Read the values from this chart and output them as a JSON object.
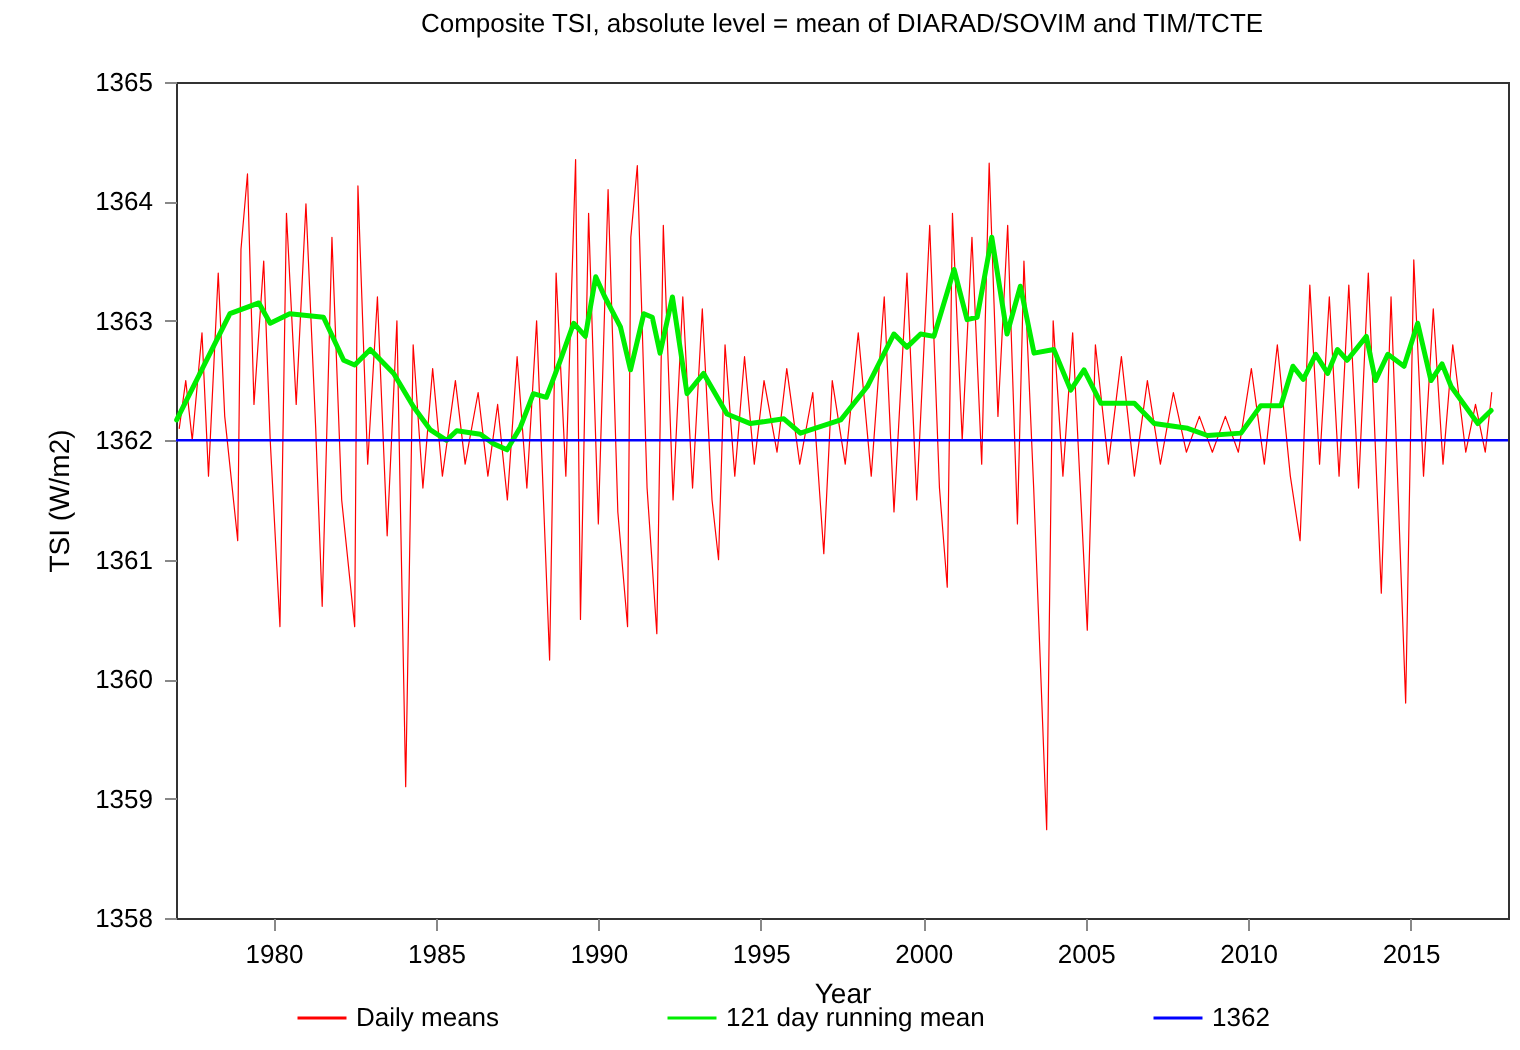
{
  "chart_data": {
    "type": "line",
    "title": "Composite TSI, absolute level = mean of DIARAD/SOVIM and TIM/TCTE",
    "xlabel": "Year",
    "ylabel": "TSI (W/m2)",
    "xlim": [
      1977,
      2018
    ],
    "xticks": [
      1980,
      1985,
      1990,
      1995,
      2000,
      2005,
      2010,
      2015
    ],
    "ylim": [
      1358,
      1365
    ],
    "yticks": [
      1358,
      1359,
      1360,
      1361,
      1362,
      1363,
      1364,
      1365
    ],
    "grid": false,
    "legend": "bottom",
    "ref_lines": [
      {
        "axis": "y",
        "value": 1362,
        "label": "1362",
        "color": "#0000ff"
      }
    ],
    "series": [
      {
        "name": "Daily means",
        "color": "#ff0000",
        "x": [
          1977.1,
          1977.3,
          1977.5,
          1977.8,
          1978.0,
          1978.3,
          1978.5,
          1978.9,
          1979.0,
          1979.2,
          1979.4,
          1979.7,
          1979.9,
          1980.2,
          1980.4,
          1980.7,
          1981.0,
          1981.3,
          1981.5,
          1981.8,
          1982.1,
          1982.5,
          1982.6,
          1982.9,
          1983.2,
          1983.5,
          1983.8,
          1984.07,
          1984.3,
          1984.6,
          1984.9,
          1985.2,
          1985.6,
          1985.9,
          1986.3,
          1986.6,
          1986.9,
          1987.2,
          1987.5,
          1987.8,
          1988.1,
          1988.5,
          1988.7,
          1989.0,
          1989.3,
          1989.45,
          1989.7,
          1990.0,
          1990.3,
          1990.6,
          1990.9,
          1991.0,
          1991.2,
          1991.5,
          1991.8,
          1992.0,
          1992.3,
          1992.6,
          1992.9,
          1993.2,
          1993.5,
          1993.7,
          1993.9,
          1994.2,
          1994.5,
          1994.8,
          1995.1,
          1995.5,
          1995.8,
          1996.2,
          1996.6,
          1996.94,
          1997.2,
          1997.6,
          1998.0,
          1998.4,
          1998.8,
          1999.1,
          1999.5,
          1999.8,
          2000.2,
          2000.5,
          2000.74,
          2000.9,
          2001.2,
          2001.5,
          2001.8,
          2002.03,
          2002.3,
          2002.6,
          2002.9,
          2003.1,
          2003.4,
          2003.8,
          2004.0,
          2004.3,
          2004.6,
          2005.05,
          2005.3,
          2005.7,
          2006.1,
          2006.5,
          2006.9,
          2007.3,
          2007.7,
          2008.1,
          2008.5,
          2008.9,
          2009.3,
          2009.7,
          2010.1,
          2010.5,
          2010.9,
          2011.3,
          2011.6,
          2011.9,
          2012.2,
          2012.5,
          2012.8,
          2013.1,
          2013.4,
          2013.7,
          2014.1,
          2014.4,
          2014.85,
          2015.1,
          2015.4,
          2015.7,
          2016.0,
          2016.3,
          2016.7,
          2017.0,
          2017.3,
          2017.5
        ],
        "values": [
          1362.1,
          1362.5,
          1362.0,
          1362.9,
          1361.7,
          1363.4,
          1362.2,
          1361.16,
          1363.6,
          1364.23,
          1362.3,
          1363.5,
          1362.0,
          1360.44,
          1363.9,
          1362.3,
          1363.98,
          1362.1,
          1360.61,
          1363.7,
          1361.5,
          1360.44,
          1364.13,
          1361.8,
          1363.2,
          1361.2,
          1363.0,
          1359.1,
          1362.8,
          1361.6,
          1362.6,
          1361.7,
          1362.5,
          1361.8,
          1362.4,
          1361.7,
          1362.3,
          1361.5,
          1362.7,
          1361.6,
          1363.0,
          1360.16,
          1363.4,
          1361.7,
          1364.35,
          1360.5,
          1363.9,
          1361.3,
          1364.1,
          1361.4,
          1360.44,
          1363.7,
          1364.3,
          1361.6,
          1360.38,
          1363.8,
          1361.5,
          1363.2,
          1361.6,
          1363.1,
          1361.5,
          1361.0,
          1362.8,
          1361.7,
          1362.7,
          1361.8,
          1362.5,
          1361.9,
          1362.6,
          1361.8,
          1362.4,
          1361.05,
          1362.5,
          1361.8,
          1362.9,
          1361.7,
          1363.2,
          1361.4,
          1363.4,
          1361.5,
          1363.8,
          1361.6,
          1360.77,
          1363.9,
          1362.0,
          1363.7,
          1361.8,
          1364.32,
          1362.2,
          1363.8,
          1361.3,
          1363.5,
          1361.6,
          1358.74,
          1363.0,
          1361.7,
          1362.9,
          1360.41,
          1362.8,
          1361.8,
          1362.7,
          1361.7,
          1362.5,
          1361.8,
          1362.4,
          1361.9,
          1362.2,
          1361.9,
          1362.2,
          1361.9,
          1362.6,
          1361.8,
          1362.8,
          1361.7,
          1361.16,
          1363.3,
          1361.8,
          1363.2,
          1361.7,
          1363.3,
          1361.6,
          1363.4,
          1360.72,
          1363.2,
          1359.8,
          1363.51,
          1361.7,
          1363.1,
          1361.8,
          1362.8,
          1361.9,
          1362.3,
          1361.9,
          1362.4
        ]
      },
      {
        "name": "121 day running mean",
        "color": "#00ee00",
        "x": [
          1977.02,
          1978.66,
          1979.55,
          1979.9,
          1980.5,
          1981.54,
          1982.16,
          1982.5,
          1982.98,
          1983.7,
          1984.31,
          1984.82,
          1985.33,
          1985.64,
          1986.37,
          1986.78,
          1987.19,
          1987.6,
          1988.0,
          1988.4,
          1988.83,
          1989.24,
          1989.6,
          1989.92,
          1990.2,
          1990.68,
          1990.99,
          1991.4,
          1991.66,
          1991.9,
          1992.28,
          1992.73,
          1993.24,
          1993.96,
          1994.68,
          1995.71,
          1996.22,
          1997.46,
          1998.28,
          1999.1,
          1999.5,
          1999.92,
          2000.33,
          2000.95,
          2001.35,
          2001.66,
          2002.11,
          2002.58,
          2002.99,
          2003.41,
          2004.02,
          2004.54,
          2004.95,
          2005.47,
          2006.5,
          2007.11,
          2008.14,
          2008.75,
          2009.78,
          2010.39,
          2011.01,
          2011.38,
          2011.7,
          2012.08,
          2012.45,
          2012.75,
          2013.05,
          2013.64,
          2013.92,
          2014.3,
          2014.8,
          2015.22,
          2015.63,
          2015.97,
          2016.25,
          2017.07,
          2017.48
        ],
        "values": [
          1362.17,
          1363.06,
          1363.15,
          1362.98,
          1363.06,
          1363.03,
          1362.67,
          1362.63,
          1362.76,
          1362.56,
          1362.28,
          1362.09,
          1362.0,
          1362.08,
          1362.05,
          1361.97,
          1361.92,
          1362.11,
          1362.39,
          1362.36,
          1362.67,
          1362.98,
          1362.87,
          1363.37,
          1363.2,
          1362.95,
          1362.59,
          1363.06,
          1363.03,
          1362.73,
          1363.2,
          1362.39,
          1362.56,
          1362.22,
          1362.14,
          1362.18,
          1362.06,
          1362.17,
          1362.45,
          1362.89,
          1362.78,
          1362.89,
          1362.87,
          1363.43,
          1363.01,
          1363.03,
          1363.7,
          1362.89,
          1363.29,
          1362.73,
          1362.76,
          1362.42,
          1362.59,
          1362.31,
          1362.31,
          1362.14,
          1362.1,
          1362.04,
          1362.06,
          1362.29,
          1362.29,
          1362.62,
          1362.51,
          1362.72,
          1362.56,
          1362.76,
          1362.67,
          1362.87,
          1362.5,
          1362.72,
          1362.62,
          1362.98,
          1362.5,
          1362.64,
          1362.45,
          1362.14,
          1362.25
        ]
      }
    ]
  }
}
